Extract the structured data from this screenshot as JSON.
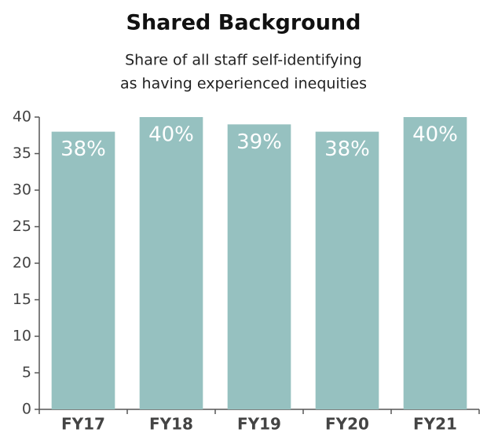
{
  "chart_data": {
    "type": "bar",
    "title": "Shared Background",
    "subtitle": [
      "Share of all staff self-identifying",
      "as having experienced inequities"
    ],
    "categories": [
      "FY17",
      "FY18",
      "FY19",
      "FY20",
      "FY21"
    ],
    "values": [
      38,
      40,
      39,
      38,
      40
    ],
    "value_labels": [
      "38%",
      "40%",
      "39%",
      "38%",
      "40%"
    ],
    "color": "#96c1c0",
    "ylim": [
      0,
      40
    ],
    "yticks": [
      0,
      5,
      10,
      15,
      20,
      25,
      30,
      35,
      40
    ],
    "grid": false
  }
}
